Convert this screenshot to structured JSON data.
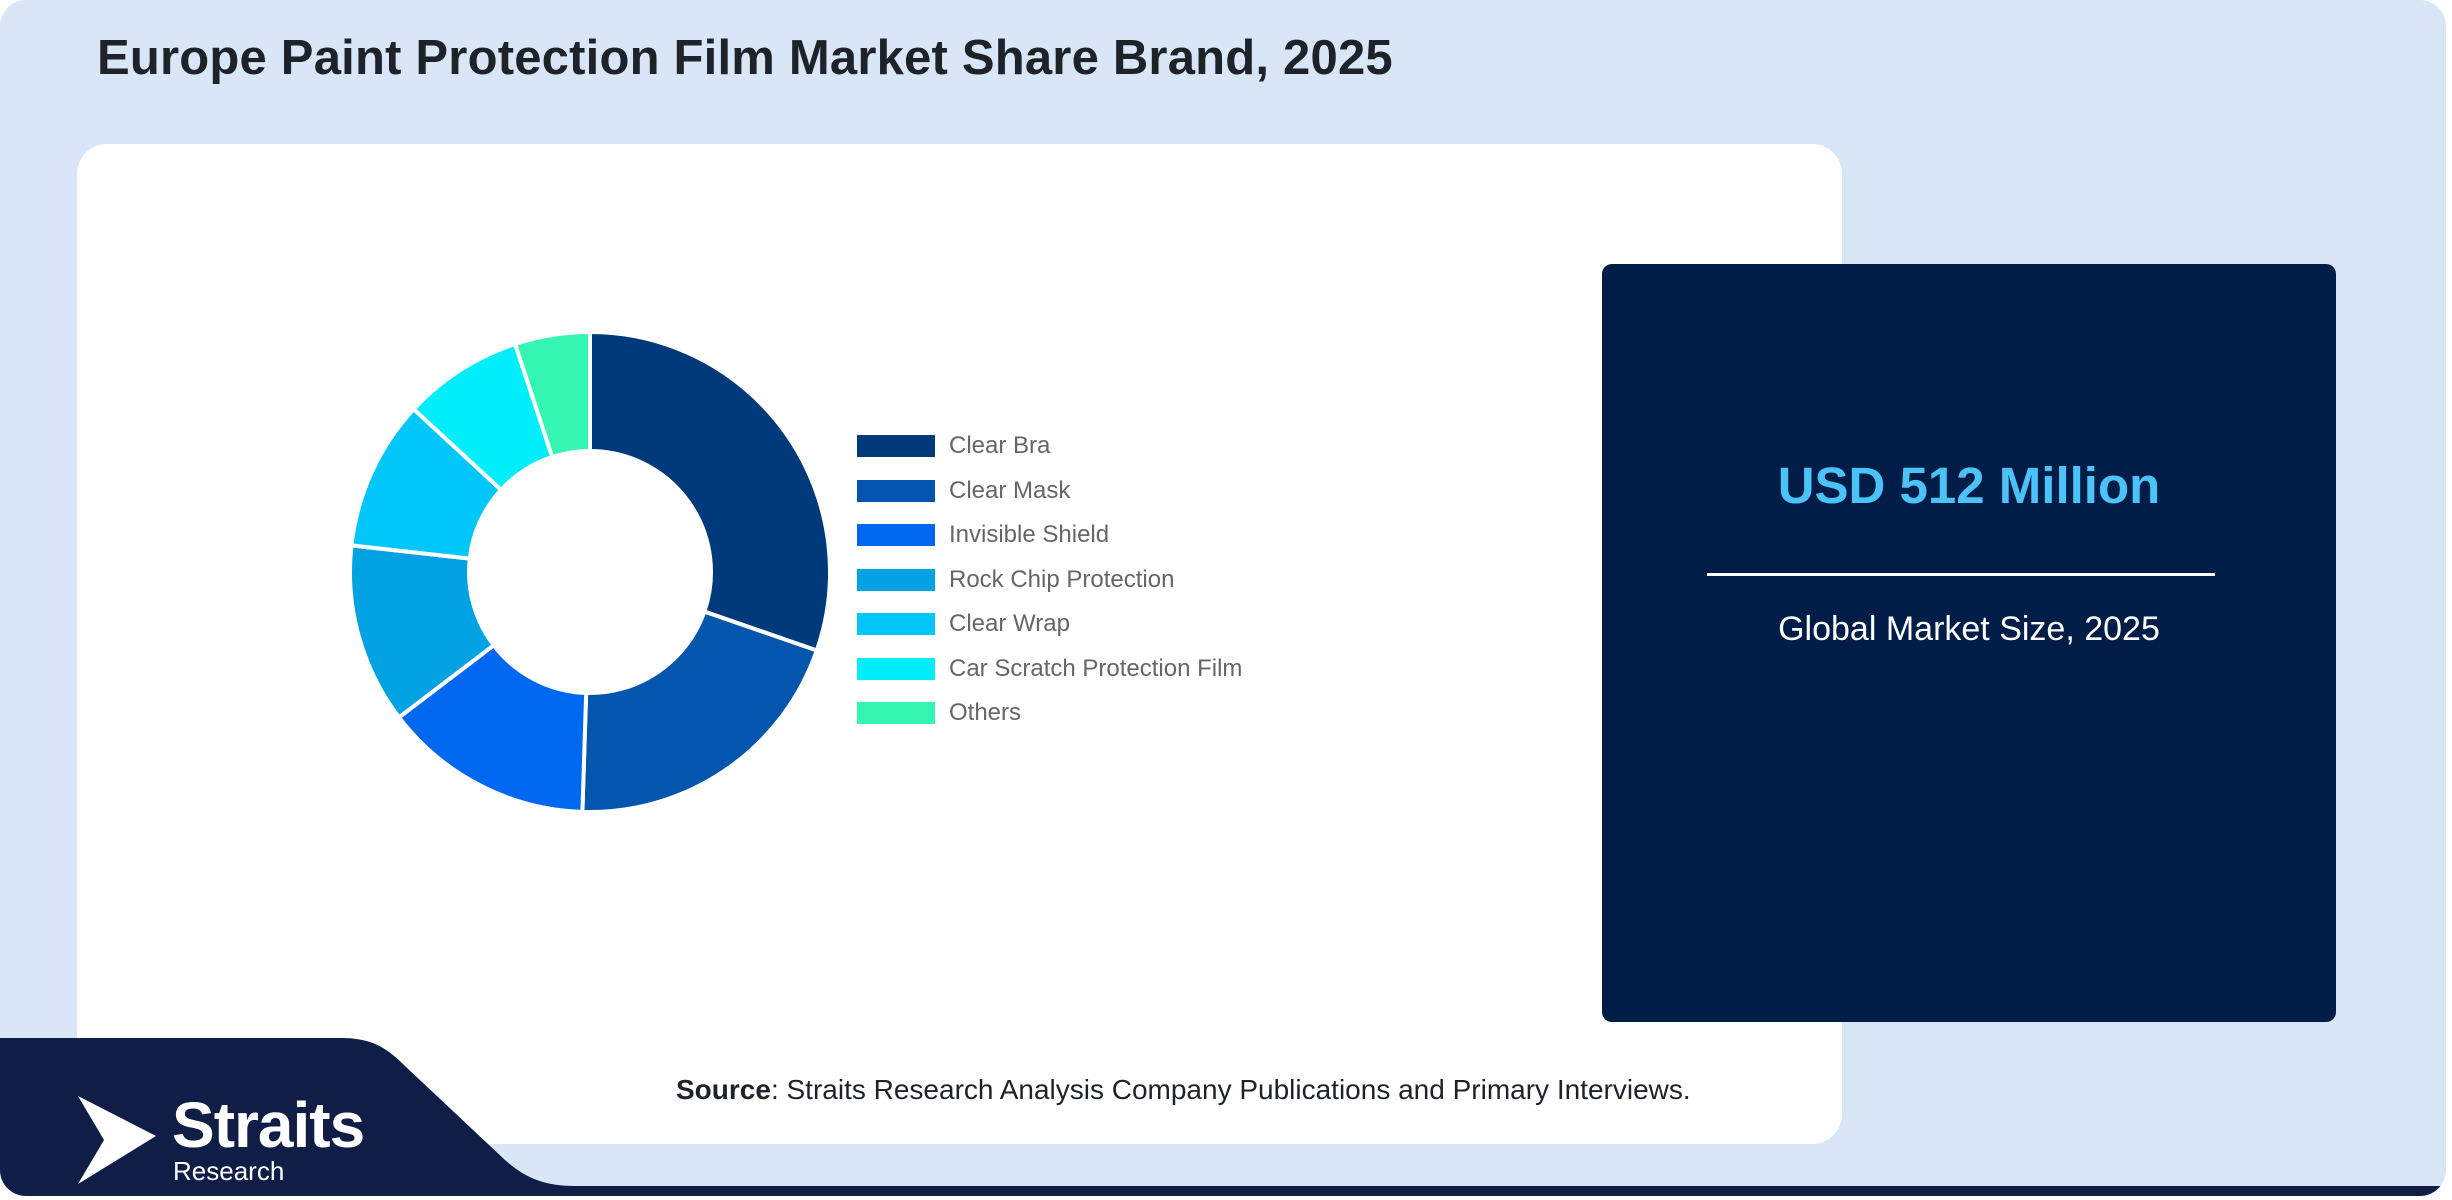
{
  "title": "Europe Paint Protection Film Market Share Brand, 2025",
  "market": {
    "value": "USD 512 Million",
    "caption": "Global Market Size, 2025"
  },
  "source": {
    "label": "Source",
    "text": ": Straits Research Analysis Company Publications and Primary Interviews."
  },
  "logo": {
    "name": "Straits",
    "sub": "Research"
  },
  "colors": {
    "background": "#d9e6f8",
    "panel": "#ffffff",
    "market_box": "#001d47",
    "market_value": "#4cc3f8",
    "footer": "#0f1d47"
  },
  "chart_data": {
    "type": "pie",
    "subtype": "donut",
    "legend_position": "right",
    "categories": [
      "Clear Bra",
      "Clear Mask",
      "Invisible Shield",
      "Rock Chip Protection",
      "Clear Wrap",
      "Car Scratch Protection Film",
      "Others"
    ],
    "values": [
      30,
      20,
      14,
      12,
      10,
      8,
      5
    ],
    "colors": [
      "#003a7a",
      "#0355ad",
      "#0068f0",
      "#00a2e3",
      "#00c6fa",
      "#00eefc",
      "#35f5b3"
    ]
  }
}
